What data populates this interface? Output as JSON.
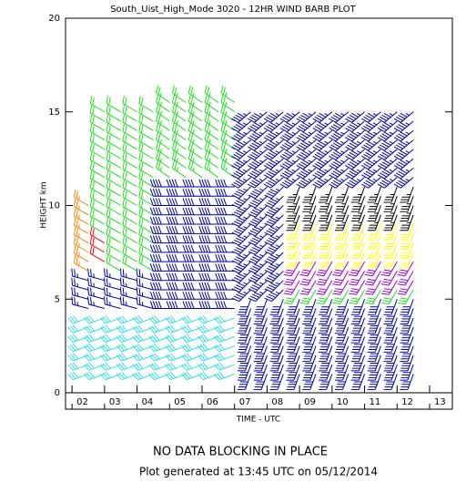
{
  "chart_data": {
    "type": "wind-barb",
    "title": "South_Uist_High_Mode 3020  -  12HR WIND BARB PLOT",
    "x_label": "TIME - UTC",
    "y_label": "HEIGHT km",
    "xlim": [
      1.8,
      13.7
    ],
    "xticks": [
      {
        "value": 2,
        "label": "02"
      },
      {
        "value": 3,
        "label": "03"
      },
      {
        "value": 4,
        "label": "04"
      },
      {
        "value": 5,
        "label": "05"
      },
      {
        "value": 6,
        "label": "06"
      },
      {
        "value": 7,
        "label": "07"
      },
      {
        "value": 8,
        "label": "08"
      },
      {
        "value": 9,
        "label": "09"
      },
      {
        "value": 10,
        "label": "10"
      },
      {
        "value": 11,
        "label": "11"
      },
      {
        "value": 12,
        "label": "12"
      },
      {
        "value": 13,
        "label": "13"
      }
    ],
    "ylim": [
      0,
      20
    ],
    "yticks": [
      0,
      5,
      10,
      15,
      20
    ],
    "x": [
      2.5,
      3.0,
      3.5,
      4.0,
      4.5,
      5.0,
      5.5,
      6.0,
      6.5,
      7.0,
      7.5,
      8.0,
      8.5,
      9.0,
      9.5,
      10.0,
      10.5,
      11.0,
      11.5,
      12.0,
      12.5
    ],
    "bands": [
      {
        "x": [
          2.5,
          7.0
        ],
        "h": [
          1,
          4
        ],
        "color": "#33e0e0",
        "speed": 30,
        "dir": 250
      },
      {
        "x": [
          7.5,
          12.5
        ],
        "h": [
          1,
          5
        ],
        "color": "#0000a0",
        "speed": 40,
        "dir": 200
      },
      {
        "x": [
          2.5,
          4.5
        ],
        "h": [
          4.5,
          6
        ],
        "color": "#0000a0",
        "speed": 25,
        "dir": 285
      },
      {
        "x": [
          2.5,
          2.5
        ],
        "h": [
          6.5,
          10
        ],
        "color": "#ff8000",
        "speed": 25,
        "dir": 300
      },
      {
        "x": [
          3.0,
          3.0
        ],
        "h": [
          7,
          8
        ],
        "color": "#ff0000",
        "speed": 20,
        "dir": 300
      },
      {
        "x": [
          3.0,
          4.5
        ],
        "h": [
          8.5,
          15
        ],
        "color": "#22dd22",
        "speed": 20,
        "dir": 300
      },
      {
        "x": [
          3.5,
          4.5
        ],
        "h": [
          6.5,
          8
        ],
        "color": "#22dd22",
        "speed": 20,
        "dir": 300
      },
      {
        "x": [
          5.0,
          7.0
        ],
        "h": [
          4.5,
          11
        ],
        "color": "#0000a0",
        "speed": 40,
        "dir": 270
      },
      {
        "x": [
          5.0,
          7.0
        ],
        "h": [
          11.5,
          15.5
        ],
        "color": "#22dd22",
        "speed": 25,
        "dir": 305
      },
      {
        "x": [
          7.5,
          8.5
        ],
        "h": [
          5.5,
          11
        ],
        "color": "#0000a0",
        "speed": 45,
        "dir": 225
      },
      {
        "x": [
          7.5,
          12.5
        ],
        "h": [
          11.5,
          15
        ],
        "color": "#0000a0",
        "speed": 45,
        "dir": 230
      },
      {
        "x": [
          9.0,
          12.5
        ],
        "h": [
          9.5,
          11
        ],
        "color": "#000000",
        "speed": 35,
        "dir": 200
      },
      {
        "x": [
          9.0,
          12.5
        ],
        "h": [
          7.5,
          9
        ],
        "color": "#ffff00",
        "speed": 30,
        "dir": 200
      },
      {
        "x": [
          9.0,
          12.5
        ],
        "h": [
          6,
          7
        ],
        "color": "#9900cc",
        "speed": 30,
        "dir": 210
      },
      {
        "x": [
          9.0,
          12.5
        ],
        "h": [
          5.5,
          5.5
        ],
        "color": "#22dd22",
        "speed": 30,
        "dir": 210
      }
    ],
    "footer": "NO DATA BLOCKING IN PLACE",
    "generated": "Plot generated at 13:45 UTC on 05/12/2014"
  }
}
